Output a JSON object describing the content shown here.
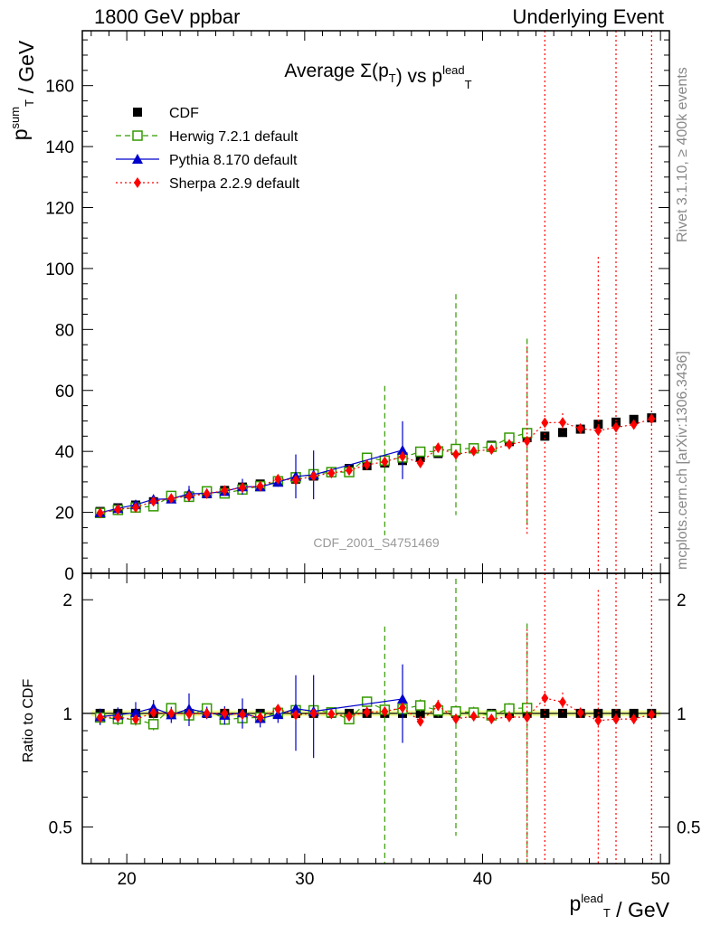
{
  "header": {
    "left": "1800 GeV ppbar",
    "right": "Underlying Event"
  },
  "side_labels": {
    "rivet": "Rivet 3.1.10, ≥ 400k events",
    "mcplots": "mcplots.cern.ch [arXiv:1306.3436]"
  },
  "chart_data": {
    "type": "scatter",
    "title": "Average Σ(p_T) vs p_T^lead",
    "watermark": "CDF_2001_S4751469",
    "xlabel": "p_T^lead / GeV",
    "ylabel": "p_T^sum / GeV",
    "ratio_ylabel": "Ratio to CDF",
    "xlim": [
      17.5,
      50.5
    ],
    "ylim": [
      0,
      178
    ],
    "ratio_ylim": [
      0.4,
      2.35
    ],
    "ratio_scale": "log",
    "x_ticks": [
      20,
      30,
      40,
      50
    ],
    "y_ticks": [
      0,
      20,
      40,
      60,
      80,
      100,
      120,
      140,
      160
    ],
    "ratio_ticks": [
      0.5,
      1,
      2
    ],
    "legend_position": "top-left",
    "series": [
      {
        "name": "CDF",
        "color": "#000000",
        "marker": "square",
        "x": [
          18.5,
          19.5,
          20.5,
          21.5,
          22.5,
          23.5,
          24.5,
          25.5,
          26.5,
          27.5,
          28.5,
          29.5,
          30.5,
          31.5,
          32.5,
          33.5,
          34.5,
          35.5,
          36.5,
          37.5,
          38.5,
          39.5,
          40.5,
          41.5,
          42.5,
          43.5,
          44.5,
          45.5,
          46.5,
          47.5,
          48.5,
          49.5
        ],
        "y": [
          20.3,
          21.5,
          22.4,
          23.5,
          24.6,
          25.4,
          26.1,
          27.2,
          28.3,
          29.3,
          30.1,
          30.9,
          31.9,
          33.0,
          34.4,
          35.3,
          36.2,
          37.0,
          38.0,
          39.3,
          40.3,
          40.8,
          42.0,
          43.2,
          44.5,
          45.0,
          46.2,
          47.3,
          48.9,
          49.6,
          50.5,
          51.0
        ]
      },
      {
        "name": "Herwig 7.2.1 default",
        "color": "#339900",
        "marker": "open-square",
        "line": "dashed",
        "x": [
          18.5,
          19.5,
          20.5,
          21.5,
          22.5,
          23.5,
          24.5,
          25.5,
          26.5,
          27.5,
          28.5,
          29.5,
          30.5,
          31.5,
          32.5,
          33.5,
          34.5,
          35.5,
          36.5,
          37.5,
          38.5,
          39.5,
          40.5,
          41.5,
          42.5
        ],
        "y": [
          19.8,
          20.8,
          21.6,
          22.0,
          25.4,
          25.1,
          26.9,
          26.2,
          27.5,
          28.6,
          30.2,
          31.5,
          32.5,
          33.2,
          33.2,
          37.9,
          37.0,
          38.0,
          39.9,
          40.0,
          40.8,
          41.0,
          41.5,
          44.5,
          46.0
        ],
        "err_low": [
          0.8,
          0.8,
          0.8,
          0.8,
          0.8,
          0.8,
          0.8,
          0.8,
          0.8,
          0.8,
          0.8,
          1.0,
          1.0,
          1.0,
          1.0,
          1.2,
          24.5,
          1.5,
          1.5,
          1.5,
          21.7,
          1.5,
          1.5,
          1.5,
          31.0
        ],
        "err_high": [
          0.8,
          0.8,
          0.8,
          0.8,
          0.8,
          0.8,
          0.8,
          0.8,
          0.8,
          0.8,
          0.8,
          1.0,
          1.0,
          1.0,
          1.0,
          1.2,
          24.5,
          1.5,
          1.5,
          1.5,
          50.8,
          1.5,
          1.5,
          1.5,
          31.0
        ]
      },
      {
        "name": "Pythia 8.170 default",
        "color": "#0000cc",
        "marker": "triangle",
        "line": "solid",
        "x": [
          18.5,
          19.5,
          20.5,
          21.5,
          22.5,
          23.5,
          24.5,
          25.5,
          26.5,
          27.5,
          28.5,
          29.5,
          30.5,
          35.5
        ],
        "y": [
          19.9,
          21.3,
          22.5,
          24.3,
          24.4,
          26.1,
          26.2,
          26.9,
          28.4,
          28.4,
          29.9,
          31.8,
          32.3,
          40.4
        ],
        "err_low": [
          1.0,
          1.0,
          1.5,
          1.2,
          1.2,
          2.6,
          1.0,
          1.5,
          2.6,
          1.5,
          1.5,
          7.2,
          8.0,
          9.5
        ],
        "err_high": [
          1.0,
          1.0,
          1.5,
          1.2,
          1.2,
          2.6,
          1.0,
          1.5,
          2.6,
          1.5,
          1.5,
          7.2,
          8.0,
          9.5
        ]
      },
      {
        "name": "Sherpa 2.2.9 default",
        "color": "#ff0000",
        "marker": "diamond",
        "line": "dotted",
        "x": [
          18.5,
          19.5,
          20.5,
          21.5,
          22.5,
          23.5,
          24.5,
          25.5,
          26.5,
          27.5,
          28.5,
          29.5,
          30.5,
          31.5,
          32.5,
          33.5,
          34.5,
          35.5,
          36.5,
          37.5,
          38.5,
          39.5,
          40.5,
          41.5,
          42.5,
          43.5,
          44.5,
          45.5,
          46.5,
          47.5,
          48.5,
          49.5
        ],
        "y": [
          19.8,
          21.0,
          21.6,
          23.6,
          24.6,
          25.3,
          26.1,
          27.2,
          28.1,
          28.6,
          30.9,
          30.6,
          31.9,
          32.9,
          33.8,
          35.6,
          36.6,
          38.3,
          36.2,
          41.2,
          39.0,
          40.1,
          40.6,
          42.3,
          43.4,
          49.4,
          49.5,
          47.5,
          46.8,
          47.9,
          48.8,
          50.7
        ],
        "err_low": [
          0.6,
          0.6,
          0.6,
          0.6,
          0.6,
          0.6,
          0.6,
          0.6,
          0.6,
          0.6,
          0.6,
          0.8,
          0.8,
          0.8,
          0.8,
          1.0,
          1.0,
          1.0,
          1.0,
          1.5,
          1.2,
          1.2,
          1.2,
          1.5,
          31.0,
          49.4,
          3.0,
          1.5,
          46.8,
          47.9,
          1.5,
          50.7
        ],
        "err_high": [
          0.6,
          0.6,
          0.6,
          0.6,
          0.6,
          0.6,
          0.6,
          0.6,
          0.6,
          0.6,
          0.6,
          0.8,
          0.8,
          0.8,
          0.8,
          1.0,
          1.0,
          1.0,
          1.0,
          1.5,
          1.2,
          1.2,
          1.2,
          1.5,
          31.0,
          140,
          3.0,
          1.5,
          57.0,
          140,
          1.5,
          140
        ]
      }
    ]
  }
}
